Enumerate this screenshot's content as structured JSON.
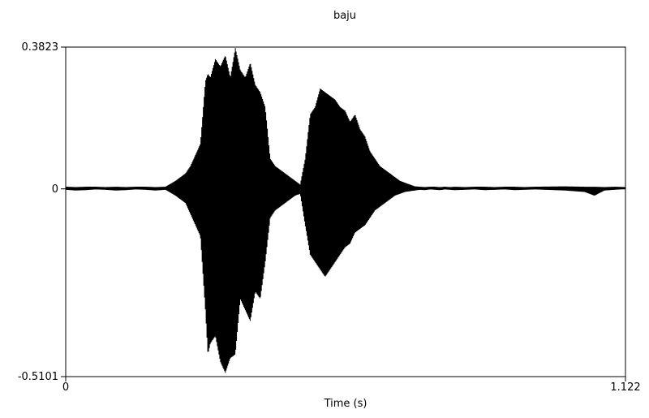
{
  "chart_data": {
    "type": "line",
    "title": "baju",
    "xlabel": "Time (s)",
    "ylabel": "",
    "xlim": [
      0,
      1.122
    ],
    "ylim": [
      -0.5101,
      0.3823
    ],
    "x_tick_labels": [
      "0",
      "1.122"
    ],
    "y_tick_labels": [
      "0.3823",
      "0",
      "-0.5101"
    ],
    "grid": false,
    "zero_line": "dashed",
    "series": [
      {
        "name": "",
        "x": [
          0,
          0.02,
          0.04,
          0.06,
          0.08,
          0.1,
          0.12,
          0.14,
          0.16,
          0.18,
          0.2,
          0.22,
          0.24,
          0.25,
          0.26,
          0.27,
          0.28,
          0.285,
          0.29,
          0.3,
          0.31,
          0.32,
          0.33,
          0.34,
          0.35,
          0.36,
          0.37,
          0.38,
          0.39,
          0.4,
          0.41,
          0.42,
          0.43,
          0.44,
          0.45,
          0.46,
          0.47,
          0.48,
          0.49,
          0.5,
          0.51,
          0.52,
          0.53,
          0.54,
          0.55,
          0.56,
          0.57,
          0.58,
          0.59,
          0.6,
          0.61,
          0.62,
          0.63,
          0.64,
          0.65,
          0.66,
          0.67,
          0.68,
          0.69,
          0.7,
          0.71,
          0.72,
          0.73,
          0.74,
          0.75,
          0.76,
          0.77,
          0.78,
          0.8,
          0.82,
          0.84,
          0.86,
          0.88,
          0.9,
          0.92,
          0.94,
          1.0,
          1.04,
          1.06,
          1.08,
          1.1,
          1.122
        ],
        "upper": [
          0.004,
          0.003,
          0.004,
          0.004,
          0.003,
          0.004,
          0.003,
          0.004,
          0.004,
          0.003,
          0.004,
          0.02,
          0.04,
          0.06,
          0.09,
          0.12,
          0.29,
          0.31,
          0.3,
          0.35,
          0.33,
          0.36,
          0.3,
          0.38,
          0.32,
          0.3,
          0.34,
          0.28,
          0.26,
          0.22,
          0.08,
          0.06,
          0.05,
          0.04,
          0.03,
          0.02,
          0.01,
          0.08,
          0.2,
          0.22,
          0.27,
          0.26,
          0.25,
          0.24,
          0.22,
          0.21,
          0.18,
          0.2,
          0.16,
          0.14,
          0.1,
          0.08,
          0.06,
          0.05,
          0.04,
          0.03,
          0.02,
          0.015,
          0.01,
          0.005,
          0.004,
          0.003,
          0.004,
          0.004,
          0.003,
          0.004,
          0.003,
          0.004,
          0.003,
          0.004,
          0.004,
          0.003,
          0.004,
          0.004,
          0.003,
          0.004,
          0.005,
          0.004,
          0.004,
          0.003,
          0.004,
          0.003
        ],
        "lower": [
          -0.004,
          -0.006,
          -0.005,
          -0.003,
          -0.004,
          -0.006,
          -0.005,
          -0.003,
          -0.004,
          -0.006,
          -0.004,
          -0.02,
          -0.04,
          -0.07,
          -0.1,
          -0.13,
          -0.33,
          -0.45,
          -0.42,
          -0.4,
          -0.47,
          -0.5,
          -0.46,
          -0.45,
          -0.3,
          -0.33,
          -0.36,
          -0.28,
          -0.3,
          -0.2,
          -0.08,
          -0.06,
          -0.05,
          -0.04,
          -0.03,
          -0.02,
          -0.015,
          -0.1,
          -0.18,
          -0.2,
          -0.22,
          -0.24,
          -0.22,
          -0.2,
          -0.18,
          -0.16,
          -0.15,
          -0.12,
          -0.11,
          -0.1,
          -0.08,
          -0.06,
          -0.05,
          -0.04,
          -0.03,
          -0.02,
          -0.015,
          -0.01,
          -0.008,
          -0.006,
          -0.004,
          -0.005,
          -0.003,
          -0.004,
          -0.005,
          -0.003,
          -0.004,
          -0.005,
          -0.004,
          -0.003,
          -0.005,
          -0.004,
          -0.003,
          -0.005,
          -0.004,
          -0.003,
          -0.006,
          -0.01,
          -0.02,
          -0.006,
          -0.004,
          -0.002
        ]
      }
    ]
  }
}
